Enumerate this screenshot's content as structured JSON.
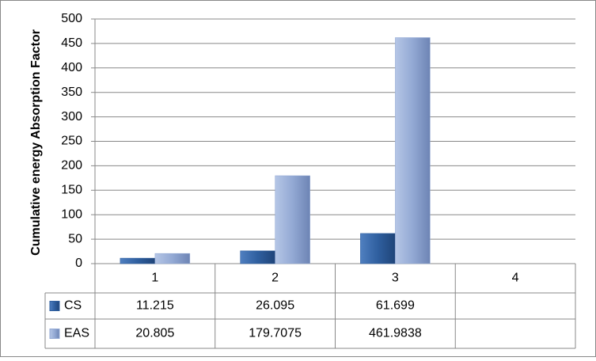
{
  "chart_data": {
    "type": "bar",
    "y_axis_label": "Cumulative energy Absorption Factor",
    "categories": [
      "1",
      "2",
      "3",
      "4"
    ],
    "series": [
      {
        "name": "CS",
        "color": "#2f5f9f",
        "values": [
          11.215,
          26.095,
          61.699,
          null
        ]
      },
      {
        "name": "EAS",
        "color": "#93a9d4",
        "values": [
          20.805,
          179.7075,
          461.9838,
          null
        ]
      }
    ],
    "ylim": [
      0,
      500
    ],
    "yticks": [
      0,
      50,
      100,
      150,
      200,
      250,
      300,
      350,
      400,
      450,
      500
    ],
    "grid": true,
    "data_table": true
  }
}
